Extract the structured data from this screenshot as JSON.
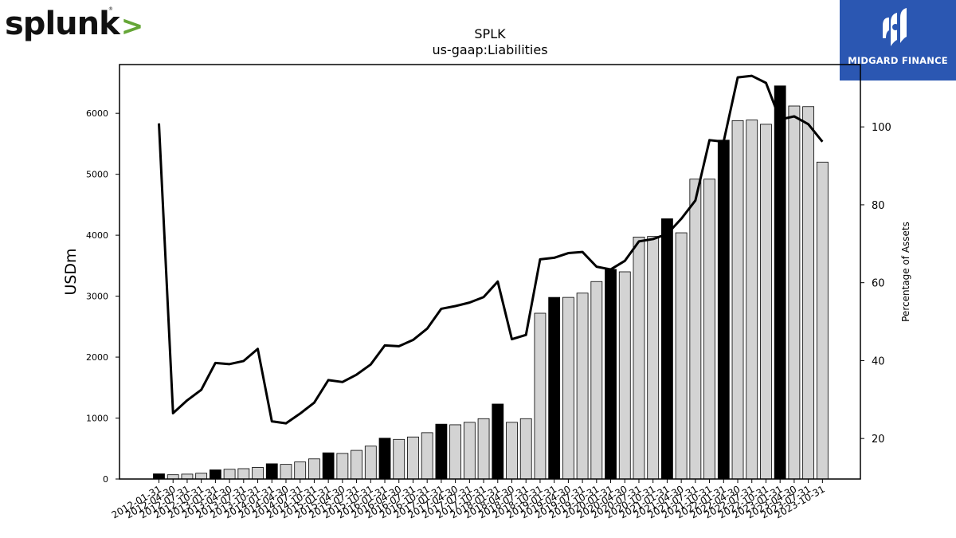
{
  "logo": {
    "text": "splunk",
    "chevron": ">",
    "registered": "®"
  },
  "brand": {
    "name": "MIDGARD FINANCE",
    "icon": "midgard-logo-icon",
    "bg_color": "#2b57b2"
  },
  "chart_data": {
    "type": "bar",
    "title": "SPLK",
    "subtitle": "us-gaap:Liabilities",
    "ylabel": "USDm",
    "y2label": "Percentage of Assets",
    "ylim": [
      0,
      6800
    ],
    "y2lim": [
      9.6,
      116
    ],
    "yticks": [
      0,
      1000,
      2000,
      3000,
      4000,
      5000,
      6000
    ],
    "y2ticks": [
      20,
      40,
      60,
      80,
      100
    ],
    "categories": [
      "2012-01-31",
      "2012-04-30",
      "2012-07-31",
      "2012-10-31",
      "2013-01-31",
      "2013-04-30",
      "2013-07-31",
      "2013-10-31",
      "2014-01-31",
      "2014-04-30",
      "2014-07-31",
      "2014-10-31",
      "2015-01-31",
      "2015-04-30",
      "2015-07-31",
      "2015-10-31",
      "2016-01-31",
      "2016-04-30",
      "2016-07-31",
      "2016-10-31",
      "2017-01-31",
      "2017-04-30",
      "2017-07-31",
      "2017-10-31",
      "2018-01-31",
      "2018-04-30",
      "2018-07-31",
      "2018-10-31",
      "2019-01-31",
      "2019-04-30",
      "2019-07-31",
      "2019-10-31",
      "2020-01-31",
      "2020-04-30",
      "2020-07-31",
      "2020-10-31",
      "2021-01-31",
      "2021-04-30",
      "2021-07-31",
      "2021-10-31",
      "2022-01-31",
      "2022-04-30",
      "2022-07-31",
      "2022-10-31",
      "2023-01-31",
      "2023-04-30",
      "2023-07-31",
      "2023-10-31"
    ],
    "series": [
      {
        "kind": "bar",
        "values": [
          85,
          70,
          80,
          95,
          150,
          160,
          170,
          190,
          250,
          240,
          280,
          330,
          430,
          420,
          470,
          540,
          670,
          650,
          690,
          760,
          900,
          890,
          930,
          990,
          1230,
          930,
          990,
          2720,
          2980,
          2980,
          3050,
          3240,
          3440,
          3400,
          3970,
          3980,
          4270,
          4040,
          4920,
          4920,
          5560,
          5880,
          5890,
          5820,
          6450,
          6120,
          6110,
          5200
        ],
        "highlight_color": "#000000",
        "bar_color": "#d3d3d3"
      },
      {
        "kind": "line",
        "axis": "right",
        "color": "#000000",
        "values": [
          100.9,
          26.5,
          29.8,
          32.5,
          39.4,
          39.1,
          39.9,
          43.0,
          24.4,
          23.9,
          26.4,
          29.2,
          35.0,
          34.5,
          36.4,
          39.0,
          43.9,
          43.7,
          45.3,
          48.2,
          53.3,
          54.0,
          54.9,
          56.3,
          60.3,
          45.5,
          46.6,
          66.0,
          66.4,
          67.6,
          67.9,
          64.1,
          63.4,
          65.6,
          70.6,
          71.2,
          72.5,
          76.4,
          81.1,
          96.6,
          96.2,
          112.7,
          113.1,
          111.3,
          101.9,
          102.7,
          100.7,
          96.2
        ]
      }
    ],
    "grid": false,
    "legend": "none"
  }
}
